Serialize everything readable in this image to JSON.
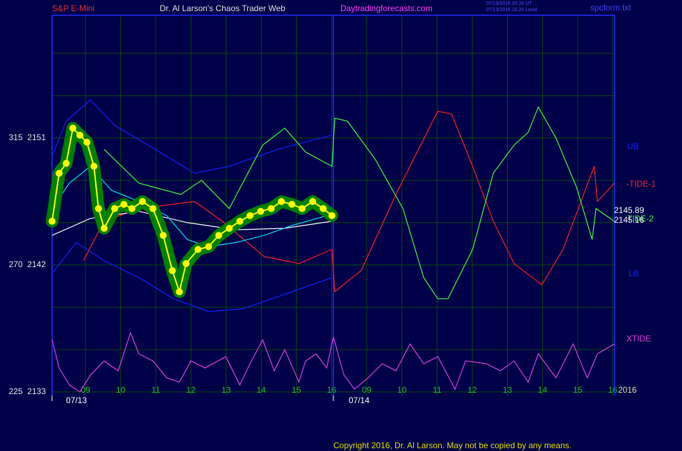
{
  "chart_data": {
    "type": "line",
    "title": "Dr. Al Larson's Chaos Trader Web",
    "annotations": [
      {
        "text": "S&P E-Mini",
        "color": "#e03030"
      },
      {
        "text": "Daytradingforecasts.com",
        "color": "#ff40ff"
      },
      {
        "text": "07/13/2016 20:20 UT",
        "color": "#5050ff"
      },
      {
        "text": "07/13/2016 16:20 Local",
        "color": "#5050ff"
      },
      {
        "text": "spcform.txt",
        "color": "#4040ff"
      },
      {
        "text": "Copyright 2016, Dr. Al Larson. May not be copied by any means.",
        "color": "#e0e000"
      },
      {
        "text": "07/13",
        "color": "#ffffff"
      },
      {
        "text": "07/14",
        "color": "#ffffff"
      },
      {
        "text": "2016",
        "color": "#e0e0a0"
      }
    ],
    "last_values": [
      2145.89,
      2145.16
    ],
    "xlim": [
      0.05,
      16.05
    ],
    "xticks": [
      {
        "value": 1,
        "label": "09"
      },
      {
        "value": 2,
        "label": "10"
      },
      {
        "value": 3,
        "label": "11"
      },
      {
        "value": 4,
        "label": "12"
      },
      {
        "value": 5,
        "label": "13"
      },
      {
        "value": 6,
        "label": "14"
      },
      {
        "value": 7,
        "label": "15"
      },
      {
        "value": 8,
        "label": "16"
      },
      {
        "value": 9,
        "label": "09"
      },
      {
        "value": 10,
        "label": "10"
      },
      {
        "value": 11,
        "label": "11"
      },
      {
        "value": 12,
        "label": "12"
      },
      {
        "value": 13,
        "label": "13"
      },
      {
        "value": 14,
        "label": "14"
      },
      {
        "value": 15,
        "label": "15"
      },
      {
        "value": 16,
        "label": "16"
      }
    ],
    "ylim": [
      2132.75,
      2159.7
    ],
    "yticks": [
      {
        "value": 2151,
        "label": "315  2151"
      },
      {
        "value": 2142,
        "label": "270  2142"
      },
      {
        "value": 2133,
        "label": "225  2133"
      }
    ],
    "ygrid": [
      2136,
      2139,
      2145,
      2148,
      2154,
      2157
    ],
    "grid": true,
    "series": [
      {
        "color": "#ffff00",
        "halo": "#008000",
        "dots": "#ffff00",
        "x": [
          0.05,
          0.25,
          0.45,
          0.64,
          0.84,
          1.04,
          1.24,
          1.37,
          1.53,
          1.83,
          2.09,
          2.32,
          2.62,
          2.92,
          3.21,
          3.47,
          3.67,
          3.86,
          4.2,
          4.5,
          4.79,
          5.09,
          5.39,
          5.68,
          5.98,
          6.28,
          6.57,
          6.87,
          7.16,
          7.46,
          7.76,
          8.01
        ],
        "values": [
          2145.1,
          2148.5,
          2149.2,
          2151.7,
          2151.2,
          2150.7,
          2149.0,
          2146.0,
          2144.6,
          2146.0,
          2146.3,
          2146.0,
          2146.5,
          2146.0,
          2144.1,
          2141.6,
          2140.1,
          2142.1,
          2143.1,
          2143.3,
          2144.1,
          2144.6,
          2145.1,
          2145.5,
          2145.8,
          2146.0,
          2146.5,
          2146.3,
          2146.0,
          2146.5,
          2146.0,
          2145.5
        ]
      },
      {
        "color": "#00e0ff",
        "x": [
          0.05,
          0.54,
          1.14,
          1.73,
          2.52,
          3.31,
          3.9,
          4.5,
          5.29,
          6.08,
          6.87,
          8.01
        ],
        "values": [
          2146.0,
          2147.8,
          2149.0,
          2147.3,
          2146.5,
          2145.5,
          2143.8,
          2143.3,
          2143.6,
          2144.1,
          2144.8,
          2145.6
        ]
      },
      {
        "color": "#ffffff",
        "x": [
          0.05,
          1.14,
          2.52,
          3.9,
          5.29,
          6.67,
          8.01
        ],
        "values": [
          2144.1,
          2145.3,
          2145.8,
          2145.0,
          2144.5,
          2144.6,
          2145.1
        ]
      },
      {
        "name": "UB",
        "color": "#1020ff",
        "x": [
          0.05,
          0.45,
          1.14,
          1.83,
          3.11,
          4.1,
          5.09,
          6.47,
          8.01
        ],
        "values": [
          2149.7,
          2152.2,
          2153.7,
          2151.9,
          2150.0,
          2148.5,
          2149.0,
          2150.2,
          2151.2
        ]
      },
      {
        "name": "LB",
        "color": "#1020ff",
        "x": [
          0.05,
          0.74,
          1.53,
          2.52,
          3.51,
          4.5,
          5.49,
          6.87,
          8.01
        ],
        "values": [
          2141.4,
          2143.6,
          2142.3,
          2141.1,
          2139.6,
          2138.7,
          2138.9,
          2140.1,
          2141.1
        ]
      },
      {
        "name": "-TIDE-1",
        "color": "#ff2020",
        "x": [
          0.94,
          1.53,
          2.52,
          4.1,
          4.89,
          6.08,
          7.07,
          8.01,
          8.09,
          8.84,
          9.83,
          10.43,
          11.02,
          11.41,
          12.01,
          12.6,
          13.19,
          13.98,
          14.58,
          15.17,
          15.47,
          15.56,
          16.04
        ],
        "values": [
          2142.3,
          2145.1,
          2146.0,
          2146.5,
          2145.1,
          2142.6,
          2142.1,
          2143.1,
          2140.1,
          2141.6,
          2147.0,
          2150.0,
          2152.9,
          2152.7,
          2149.0,
          2145.1,
          2142.1,
          2140.6,
          2143.1,
          2147.0,
          2149.0,
          2146.5,
          2147.8
        ]
      },
      {
        "name": "TIDE-2",
        "color": "#40ff40",
        "x": [
          1.53,
          2.52,
          3.71,
          4.3,
          5.09,
          6.04,
          6.67,
          7.26,
          8.01,
          8.09,
          8.45,
          9.24,
          10.03,
          10.62,
          11.02,
          11.31,
          12.01,
          12.6,
          13.19,
          13.59,
          13.88,
          14.38,
          14.97,
          15.41,
          15.52,
          16.04
        ],
        "values": [
          2150.2,
          2147.8,
          2147.0,
          2148.0,
          2146.0,
          2150.5,
          2151.7,
          2150.0,
          2149.0,
          2152.4,
          2152.2,
          2149.5,
          2146.0,
          2141.1,
          2139.6,
          2139.6,
          2143.1,
          2148.5,
          2150.5,
          2151.4,
          2153.2,
          2151.0,
          2147.5,
          2143.8,
          2146.0,
          2145.1
        ]
      },
      {
        "name": "XTIDE",
        "color": "#e040e0",
        "x": [
          0.05,
          0.25,
          0.54,
          0.84,
          1.14,
          1.53,
          1.93,
          2.28,
          2.52,
          2.92,
          3.31,
          3.67,
          4.0,
          4.4,
          4.99,
          5.39,
          5.68,
          6.04,
          6.37,
          6.67,
          7.07,
          7.26,
          7.56,
          7.86,
          8.05,
          8.35,
          8.65,
          9.04,
          9.44,
          9.83,
          10.23,
          10.62,
          11.02,
          11.51,
          11.81,
          12.4,
          12.8,
          13.19,
          13.59,
          13.88,
          14.38,
          14.87,
          15.27,
          15.56,
          16.04
        ],
        "values": [
          2136.7,
          2134.7,
          2133.5,
          2133.0,
          2134.2,
          2135.2,
          2134.5,
          2137.2,
          2135.7,
          2135.2,
          2134.0,
          2133.7,
          2135.2,
          2134.7,
          2135.5,
          2133.5,
          2135.0,
          2136.7,
          2134.5,
          2136.0,
          2133.7,
          2135.2,
          2135.7,
          2134.7,
          2136.9,
          2134.2,
          2133.2,
          2134.0,
          2135.0,
          2134.5,
          2136.4,
          2135.0,
          2135.5,
          2133.2,
          2135.2,
          2135.0,
          2134.5,
          2135.2,
          2133.7,
          2135.7,
          2134.0,
          2136.4,
          2134.0,
          2135.7,
          2136.4
        ]
      }
    ]
  }
}
